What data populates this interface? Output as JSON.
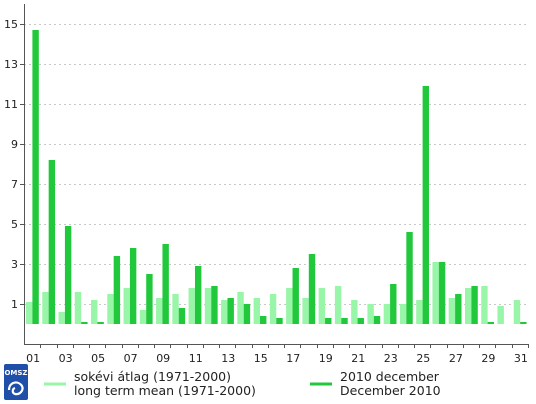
{
  "chart_data": {
    "type": "bar",
    "ylim": [
      -1,
      16
    ],
    "yticks": [
      1,
      3,
      5,
      7,
      9,
      11,
      13,
      15
    ],
    "xtick_labels": [
      "01",
      "03",
      "05",
      "07",
      "09",
      "11",
      "13",
      "15",
      "17",
      "19",
      "21",
      "23",
      "25",
      "27",
      "29",
      "31"
    ],
    "grid": true,
    "legend_position": "bottom",
    "categories": [
      "01",
      "02",
      "03",
      "04",
      "05",
      "06",
      "07",
      "08",
      "09",
      "10",
      "11",
      "12",
      "13",
      "14",
      "15",
      "16",
      "17",
      "18",
      "19",
      "20",
      "21",
      "22",
      "23",
      "24",
      "25",
      "26",
      "27",
      "28",
      "29",
      "30",
      "31"
    ],
    "series": [
      {
        "name_lines": [
          "sokévi átlag (1971-2000)",
          "long term mean (1971-2000)"
        ],
        "color": "#99f5a8",
        "values": [
          1.1,
          1.6,
          0.6,
          1.6,
          1.2,
          1.5,
          1.8,
          0.7,
          1.3,
          1.5,
          1.8,
          1.8,
          1.2,
          1.6,
          1.3,
          1.5,
          1.8,
          1.3,
          1.8,
          1.9,
          1.2,
          1.0,
          1.0,
          1.0,
          1.2,
          3.1,
          1.3,
          1.8,
          1.9,
          0.9,
          1.2
        ]
      },
      {
        "name_lines": [
          "2010 december",
          "December 2010"
        ],
        "color": "#22c83c",
        "values": [
          14.7,
          8.2,
          4.9,
          0.1,
          0.1,
          3.4,
          3.8,
          2.5,
          4.0,
          0.8,
          2.9,
          1.9,
          1.3,
          1.0,
          0.4,
          0.3,
          2.8,
          3.5,
          0.3,
          0.3,
          0.3,
          0.4,
          2.0,
          4.6,
          11.9,
          3.1,
          1.5,
          1.9,
          0.1,
          0.0,
          0.1
        ]
      }
    ]
  },
  "logo": {
    "text": "OMSZ"
  }
}
